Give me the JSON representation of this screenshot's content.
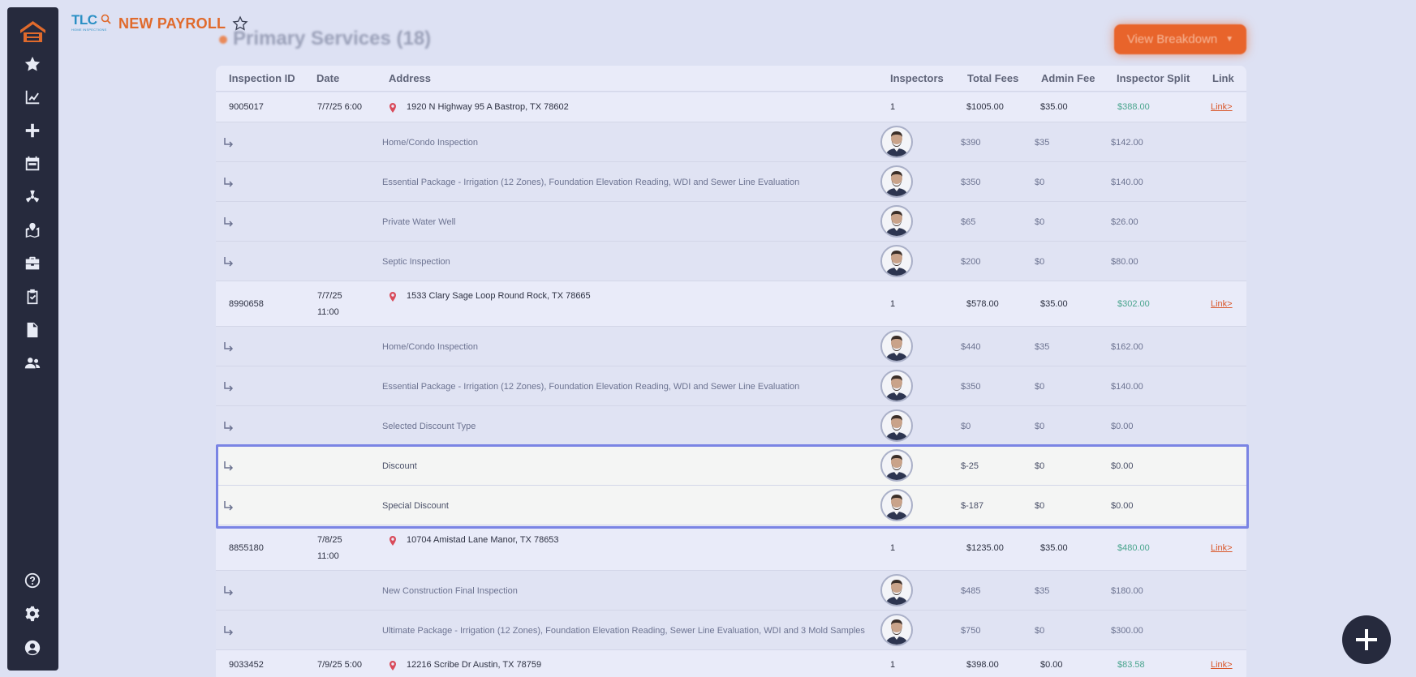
{
  "sidebar": {
    "icons": [
      "home-logo-icon",
      "star-icon",
      "chart-line-icon",
      "plus-icon",
      "calendar-icon",
      "radiation-icon",
      "map-marked-icon",
      "briefcase-icon",
      "clipboard-check-icon",
      "file-icon",
      "users-icon",
      "help-icon",
      "gear-icon",
      "user-circle-icon"
    ]
  },
  "header": {
    "logo_text": "TLC",
    "logo_sub": "HOME INSPECTIONS",
    "title": "NEW PAYROLL"
  },
  "section": {
    "title": "Primary Services (18)",
    "breakdown_button": "View Breakdown"
  },
  "table": {
    "columns": {
      "id": "Inspection ID",
      "date": "Date",
      "address": "Address",
      "inspectors": "Inspectors",
      "total_fees": "Total Fees",
      "admin_fee": "Admin Fee",
      "inspector_split": "Inspector Split",
      "link": "Link"
    },
    "inspections": [
      {
        "id": "9005017",
        "date": "7/7/25 6:00",
        "address": "1920 N Highway 95 A Bastrop, TX 78602",
        "inspectors": "1",
        "total": "$1005.00",
        "admin": "$35.00",
        "split": "$388.00",
        "link": "Link>",
        "services": [
          {
            "name": "Home/Condo Inspection",
            "fee": "$390",
            "admin": "$35",
            "split": "$142.00"
          },
          {
            "name": "Essential Package - Irrigation (12 Zones), Foundation Elevation Reading, WDI and Sewer Line Evaluation",
            "fee": "$350",
            "admin": "$0",
            "split": "$140.00"
          },
          {
            "name": "Private Water Well",
            "fee": "$65",
            "admin": "$0",
            "split": "$26.00"
          },
          {
            "name": "Septic Inspection",
            "fee": "$200",
            "admin": "$0",
            "split": "$80.00"
          }
        ]
      },
      {
        "id": "8990658",
        "date_line1": "7/7/25",
        "date_line2": "11:00",
        "address": "1533 Clary Sage Loop Round Rock, TX 78665",
        "inspectors": "1",
        "total": "$578.00",
        "admin": "$35.00",
        "split": "$302.00",
        "link": "Link>",
        "services": [
          {
            "name": "Home/Condo Inspection",
            "fee": "$440",
            "admin": "$35",
            "split": "$162.00"
          },
          {
            "name": "Essential Package - Irrigation (12 Zones), Foundation Elevation Reading, WDI and Sewer Line Evaluation",
            "fee": "$350",
            "admin": "$0",
            "split": "$140.00"
          },
          {
            "name": "Selected Discount Type",
            "fee": "$0",
            "admin": "$0",
            "split": "$0.00"
          },
          {
            "name": "Discount",
            "fee": "$-25",
            "admin": "$0",
            "split": "$0.00"
          },
          {
            "name": "Special Discount",
            "fee": "$-187",
            "admin": "$0",
            "split": "$0.00"
          }
        ]
      },
      {
        "id": "8855180",
        "date_line1": "7/8/25",
        "date_line2": "11:00",
        "address": "10704 Amistad Lane Manor, TX 78653",
        "inspectors": "1",
        "total": "$1235.00",
        "admin": "$35.00",
        "split": "$480.00",
        "link": "Link>",
        "services": [
          {
            "name": "New Construction Final Inspection",
            "fee": "$485",
            "admin": "$35",
            "split": "$180.00"
          },
          {
            "name": "Ultimate Package - Irrigation (12 Zones), Foundation Elevation Reading, Sewer Line Evaluation, WDI and 3 Mold Samples",
            "fee": "$750",
            "admin": "$0",
            "split": "$300.00"
          }
        ]
      },
      {
        "id": "9033452",
        "date": "7/9/25 5:00",
        "address": "12216 Scribe Dr Austin, TX 78759",
        "inspectors": "1",
        "total": "$398.00",
        "admin": "$0.00",
        "split": "$83.58",
        "link": "Link>"
      }
    ]
  },
  "colors": {
    "sidebar_bg": "#262a3d",
    "accent_orange": "#e8642b",
    "split_green": "#4aa58e",
    "highlight_border": "#7a84e4",
    "pin_red": "#d94a5a"
  }
}
